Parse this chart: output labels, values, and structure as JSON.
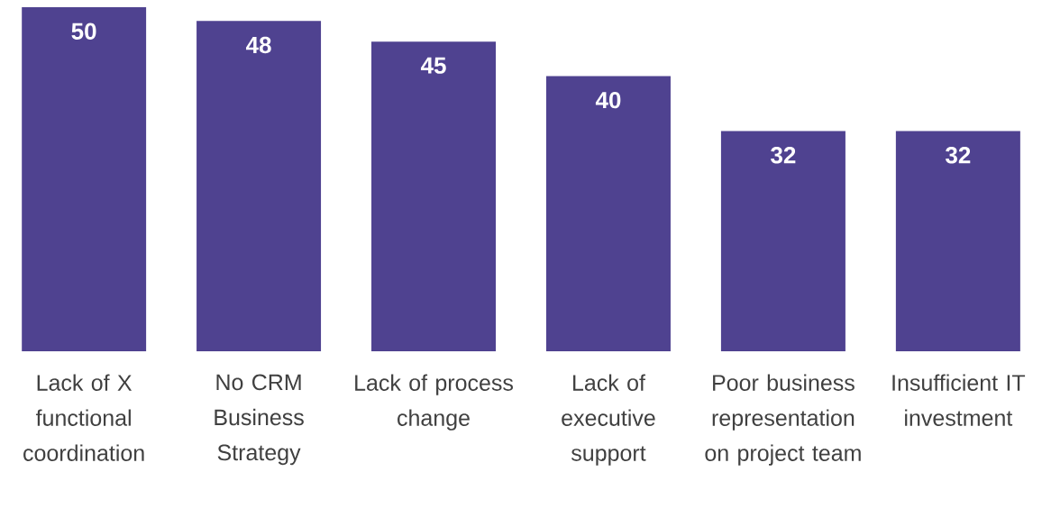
{
  "chart_data": {
    "type": "bar",
    "categories": [
      "Lack of X functional coordination",
      "No CRM Business Strategy",
      "Lack of process change",
      "Lack of executive support",
      "Poor business representation on project team",
      "Insufficient IT investment"
    ],
    "values": [
      50,
      48,
      45,
      40,
      32,
      32
    ],
    "color": "#4f4290",
    "data_labels": true
  }
}
